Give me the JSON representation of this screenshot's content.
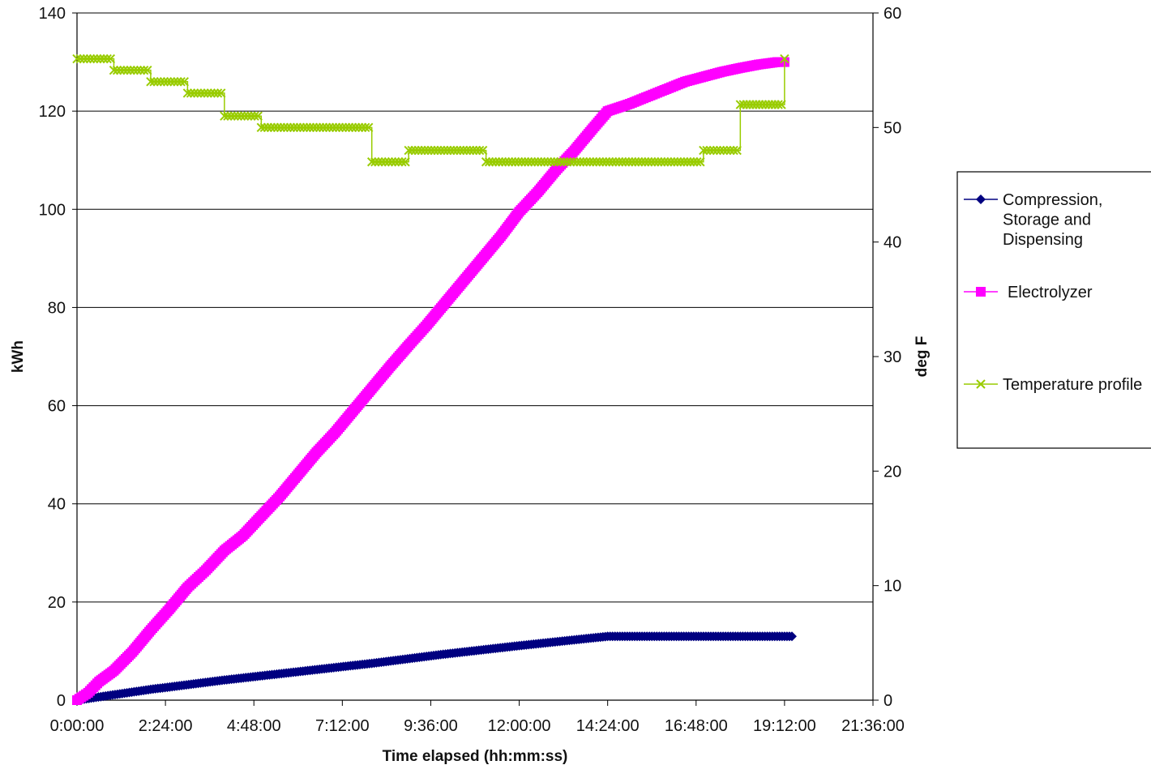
{
  "chart_data": {
    "type": "line",
    "title": "",
    "xlabel": "Time elapsed (hh:mm:ss)",
    "ylabel": "kWh",
    "y2label": "deg F",
    "x_unit": "hours",
    "xlim": [
      0,
      21.6
    ],
    "ylim": [
      0,
      140
    ],
    "y2lim": [
      0,
      60
    ],
    "x_ticks": [
      0,
      2.4,
      4.8,
      7.2,
      9.6,
      12,
      14.4,
      16.8,
      19.2,
      21.6
    ],
    "x_tick_labels": [
      "0:00:00",
      "2:24:00",
      "4:48:00",
      "7:12:00",
      "9:36:00",
      "12:00:00",
      "14:24:00",
      "16:48:00",
      "19:12:00",
      "21:36:00"
    ],
    "y_ticks": [
      0,
      20,
      40,
      60,
      80,
      100,
      120,
      140
    ],
    "y_tick_labels": [
      "0",
      "20",
      "40",
      "60",
      "80",
      "100",
      "120",
      "140"
    ],
    "y2_ticks": [
      0,
      10,
      20,
      30,
      40,
      50,
      60
    ],
    "y2_tick_labels": [
      "0",
      "10",
      "20",
      "30",
      "40",
      "50",
      "60"
    ],
    "grid": "horizontal major gridlines",
    "legend_position": "right",
    "series": [
      {
        "name": "Compression, Storage and Dispensing",
        "axis": "left",
        "color": "#000080",
        "marker": "diamond",
        "points": [
          [
            0,
            0
          ],
          [
            2,
            2.2
          ],
          [
            4,
            4.1
          ],
          [
            6,
            5.8
          ],
          [
            8,
            7.5
          ],
          [
            10,
            9.4
          ],
          [
            12,
            11.1
          ],
          [
            14.4,
            13
          ],
          [
            16,
            13
          ],
          [
            18,
            13
          ],
          [
            19.4,
            13
          ]
        ]
      },
      {
        "name": "Electrolyzer",
        "axis": "left",
        "color": "#FF00FF",
        "marker": "square",
        "points": [
          [
            0,
            0
          ],
          [
            0.3,
            1.5
          ],
          [
            0.6,
            3.8
          ],
          [
            1,
            6
          ],
          [
            1.5,
            9.8
          ],
          [
            2,
            14.3
          ],
          [
            2.5,
            18.5
          ],
          [
            3,
            23
          ],
          [
            3.5,
            26.5
          ],
          [
            4,
            30.5
          ],
          [
            4.5,
            33.5
          ],
          [
            5,
            37.5
          ],
          [
            5.5,
            41.5
          ],
          [
            6,
            46
          ],
          [
            6.5,
            50.5
          ],
          [
            7,
            54.5
          ],
          [
            7.5,
            59
          ],
          [
            8,
            63.5
          ],
          [
            8.5,
            68
          ],
          [
            9,
            72.3
          ],
          [
            9.5,
            76.5
          ],
          [
            10,
            81
          ],
          [
            10.5,
            85.5
          ],
          [
            11,
            90
          ],
          [
            11.5,
            94.5
          ],
          [
            12,
            99.5
          ],
          [
            12.5,
            103.5
          ],
          [
            13,
            108
          ],
          [
            13.5,
            112
          ],
          [
            14,
            116.5
          ],
          [
            14.4,
            120
          ],
          [
            15,
            121.5
          ],
          [
            15.5,
            123
          ],
          [
            16,
            124.5
          ],
          [
            16.5,
            126
          ],
          [
            17,
            127
          ],
          [
            17.5,
            128
          ],
          [
            18,
            128.8
          ],
          [
            18.5,
            129.5
          ],
          [
            19,
            130
          ],
          [
            19.2,
            130
          ]
        ]
      },
      {
        "name": "Temperature profile",
        "axis": "right",
        "color": "#99CC00",
        "marker": "x",
        "points": [
          [
            0,
            56
          ],
          [
            1,
            56
          ],
          [
            1,
            55
          ],
          [
            2,
            55
          ],
          [
            2,
            54
          ],
          [
            3,
            54
          ],
          [
            3,
            53
          ],
          [
            4,
            53
          ],
          [
            4,
            51
          ],
          [
            5,
            51
          ],
          [
            5,
            50
          ],
          [
            8,
            50
          ],
          [
            8,
            47
          ],
          [
            9,
            47
          ],
          [
            9,
            48
          ],
          [
            11.1,
            48
          ],
          [
            11.1,
            47
          ],
          [
            17,
            47
          ],
          [
            17,
            48
          ],
          [
            18,
            48
          ],
          [
            18,
            52
          ],
          [
            19.2,
            52
          ],
          [
            19.2,
            56
          ]
        ]
      }
    ]
  }
}
